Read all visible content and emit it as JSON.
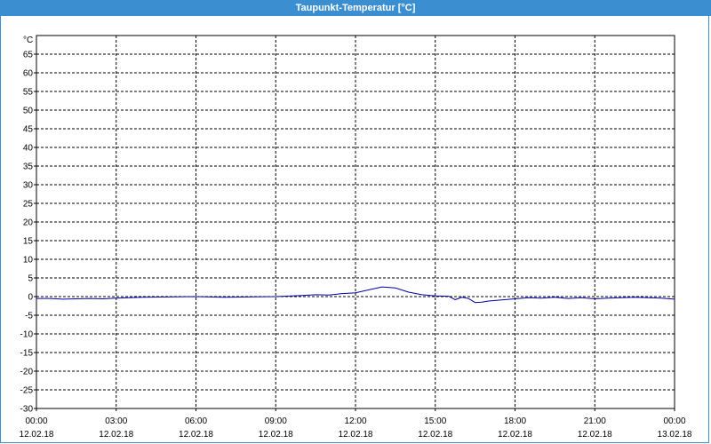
{
  "window": {
    "title": "Taupunkt-Temperatur [°C]"
  },
  "chart_data": {
    "type": "line",
    "title": "Taupunkt-Temperatur [°C]",
    "ylabel": "°C",
    "xlabel": "",
    "ylim": [
      -30,
      70
    ],
    "yticks": [
      65,
      60,
      55,
      50,
      45,
      40,
      35,
      30,
      25,
      20,
      15,
      10,
      5,
      0,
      -5,
      -10,
      -15,
      -20,
      -25,
      -30
    ],
    "xlim": [
      "12.02.18 00:00",
      "13.02.18 00:00"
    ],
    "xticks": [
      {
        "time": "00:00",
        "date": "12.02.18"
      },
      {
        "time": "03:00",
        "date": "12.02.18"
      },
      {
        "time": "06:00",
        "date": "12.02.18"
      },
      {
        "time": "09:00",
        "date": "12.02.18"
      },
      {
        "time": "12:00",
        "date": "12.02.18"
      },
      {
        "time": "15:00",
        "date": "12.02.18"
      },
      {
        "time": "18:00",
        "date": "12.02.18"
      },
      {
        "time": "21:00",
        "date": "12.02.18"
      },
      {
        "time": "00:00",
        "date": "13.02.18"
      }
    ],
    "grid": true,
    "line_color": "#0000aa",
    "series": [
      {
        "name": "",
        "x": [
          "12.02.18 00:00",
          "12.02.18 00:30",
          "12.02.18 01:00",
          "12.02.18 01:30",
          "12.02.18 02:00",
          "12.02.18 02:30",
          "12.02.18 03:00",
          "12.02.18 03:30",
          "12.02.18 04:00",
          "12.02.18 05:00",
          "12.02.18 06:00",
          "12.02.18 07:00",
          "12.02.18 08:00",
          "12.02.18 09:00",
          "12.02.18 10:00",
          "12.02.18 10:30",
          "12.02.18 11:00",
          "12.02.18 11:30",
          "12.02.18 12:00",
          "12.02.18 12:30",
          "12.02.18 13:00",
          "12.02.18 13:30",
          "12.02.18 14:00",
          "12.02.18 14:30",
          "12.02.18 15:00",
          "12.02.18 15:30",
          "12.02.18 15:45",
          "12.02.18 16:00",
          "12.02.18 16:15",
          "12.02.18 16:30",
          "12.02.18 16:45",
          "12.02.18 17:00",
          "12.02.18 17:30",
          "12.02.18 18:00",
          "12.02.18 18:30",
          "12.02.18 19:00",
          "12.02.18 19:30",
          "12.02.18 20:00",
          "12.02.18 20:30",
          "12.02.18 21:00",
          "12.02.18 21:30",
          "12.02.18 22:00",
          "12.02.18 22:30",
          "12.02.18 23:00",
          "12.02.18 23:30",
          "13.02.18 00:00"
        ],
        "y": [
          -0.5,
          -0.5,
          -0.7,
          -0.6,
          -0.5,
          -0.6,
          -0.4,
          -0.3,
          -0.2,
          -0.1,
          0.0,
          -0.2,
          -0.1,
          0.0,
          0.3,
          0.5,
          0.4,
          0.8,
          1.0,
          1.8,
          2.6,
          2.3,
          1.2,
          0.5,
          0.2,
          0.1,
          -0.8,
          -0.2,
          -0.5,
          -1.6,
          -1.5,
          -1.2,
          -0.9,
          -0.6,
          -0.3,
          -0.4,
          -0.2,
          -0.5,
          -0.3,
          -0.6,
          -0.4,
          -0.3,
          -0.2,
          -0.3,
          -0.4,
          -0.7
        ]
      }
    ]
  }
}
